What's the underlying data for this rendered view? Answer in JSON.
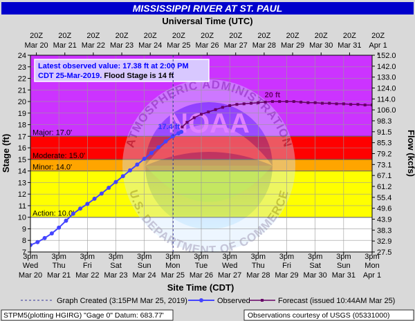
{
  "chart_data": {
    "type": "line",
    "title": "MISSISSIPPI RIVER AT ST. PAUL",
    "top_axis_title": "Universal Time (UTC)",
    "bottom_axis_title": "Site Time (CDT)",
    "ylabel": "Stage (ft)",
    "y2label": "Flow (kcfs)",
    "ylim": [
      7,
      24
    ],
    "xlim": [
      "Mar 20 3pm CDT",
      "Apr 1 3pm CDT"
    ],
    "y_ticks": [
      "7",
      "8",
      "9",
      "10",
      "11",
      "12",
      "13",
      "14",
      "15",
      "16",
      "17",
      "18",
      "19",
      "20",
      "21",
      "22",
      "23",
      "24"
    ],
    "y2_ticks": [
      "27.5",
      "32.9",
      "38.3",
      "43.9",
      "49.6",
      "55.4",
      "61.2",
      "67.1",
      "73.1",
      "79.2",
      "85.3",
      "91.5",
      "98.3",
      "106.0",
      "114.0",
      "124.0",
      "133.0",
      "142.0",
      "152.0"
    ],
    "top_ticks": [
      {
        "l1": "20Z",
        "l2": "Mar 20"
      },
      {
        "l1": "20Z",
        "l2": "Mar 21"
      },
      {
        "l1": "20Z",
        "l2": "Mar 22"
      },
      {
        "l1": "20Z",
        "l2": "Mar 23"
      },
      {
        "l1": "20Z",
        "l2": "Mar 24"
      },
      {
        "l1": "20Z",
        "l2": "Mar 25"
      },
      {
        "l1": "20Z",
        "l2": "Mar 26"
      },
      {
        "l1": "20Z",
        "l2": "Mar 27"
      },
      {
        "l1": "20Z",
        "l2": "Mar 28"
      },
      {
        "l1": "20Z",
        "l2": "Mar 29"
      },
      {
        "l1": "20Z",
        "l2": "Mar 30"
      },
      {
        "l1": "20Z",
        "l2": "Mar 31"
      },
      {
        "l1": "20Z",
        "l2": "Apr 1"
      }
    ],
    "bottom_ticks": [
      {
        "l1": "3pm",
        "l2": "Wed",
        "l3": "Mar 20"
      },
      {
        "l1": "3pm",
        "l2": "Thu",
        "l3": "Mar 21"
      },
      {
        "l1": "3pm",
        "l2": "Fri",
        "l3": "Mar 22"
      },
      {
        "l1": "3pm",
        "l2": "Sat",
        "l3": "Mar 23"
      },
      {
        "l1": "3pm",
        "l2": "Sun",
        "l3": "Mar 24"
      },
      {
        "l1": "3pm",
        "l2": "Mon",
        "l3": "Mar 25"
      },
      {
        "l1": "3pm",
        "l2": "Tue",
        "l3": "Mar 26"
      },
      {
        "l1": "3pm",
        "l2": "Wed",
        "l3": "Mar 27"
      },
      {
        "l1": "3pm",
        "l2": "Thu",
        "l3": "Mar 28"
      },
      {
        "l1": "3pm",
        "l2": "Fri",
        "l3": "Mar 29"
      },
      {
        "l1": "3pm",
        "l2": "Sat",
        "l3": "Mar 30"
      },
      {
        "l1": "3pm",
        "l2": "Sun",
        "l3": "Mar 31"
      },
      {
        "l1": "3pm",
        "l2": "Mon",
        "l3": "Apr 1"
      }
    ],
    "flood_categories": [
      {
        "label": "Action: 10.0'",
        "from": 10,
        "to": 14,
        "color": "#ffff00"
      },
      {
        "label": "Minor: 14.0'",
        "from": 14,
        "to": 15,
        "color": "#ffa500"
      },
      {
        "label": "Moderate: 15.0'",
        "from": 15,
        "to": 17,
        "color": "#ff0000"
      },
      {
        "label": "Major: 17.0'",
        "from": 17,
        "to": 24,
        "color": "#cc33ff"
      }
    ],
    "info_box": {
      "line1": "Latest observed value: 17.38 ft at 2:00 PM",
      "line2a": "CDT 25-Mar-2019.",
      "line2b": " Flood Stage is 14 ft"
    },
    "annotations": {
      "observed_peak": "17.4 ft",
      "forecast_peak": "20 ft",
      "watermark_upper": "ATMOSPHERIC ADMINISTRATION",
      "watermark_lower": "U.S. DEPARTMENT OF COMMERCE",
      "watermark_noaa": "NOAA"
    },
    "series": [
      {
        "name": "Observed",
        "color": "#4444ff",
        "points": [
          [
            0,
            7.6
          ],
          [
            0.25,
            7.85
          ],
          [
            0.5,
            8.2
          ],
          [
            0.75,
            8.6
          ],
          [
            1.0,
            9.1
          ],
          [
            1.25,
            9.7
          ],
          [
            1.5,
            10.3
          ],
          [
            1.75,
            10.75
          ],
          [
            2.0,
            11.15
          ],
          [
            2.25,
            11.6
          ],
          [
            2.5,
            12.05
          ],
          [
            2.75,
            12.55
          ],
          [
            3.0,
            13.05
          ],
          [
            3.25,
            13.55
          ],
          [
            3.5,
            14.05
          ],
          [
            3.75,
            14.55
          ],
          [
            4.0,
            15.05
          ],
          [
            4.25,
            15.55
          ],
          [
            4.5,
            16.05
          ],
          [
            4.75,
            16.55
          ],
          [
            5.0,
            17.0
          ],
          [
            5.2,
            17.25
          ],
          [
            5.3,
            17.38
          ]
        ]
      },
      {
        "name": "Forecast (issued 10:44AM Mar 25)",
        "color": "#660066",
        "points": [
          [
            5.33,
            17.8
          ],
          [
            5.5,
            18.2
          ],
          [
            5.75,
            18.6
          ],
          [
            6.0,
            18.9
          ],
          [
            6.25,
            19.1
          ],
          [
            6.5,
            19.3
          ],
          [
            6.75,
            19.5
          ],
          [
            7.0,
            19.65
          ],
          [
            7.25,
            19.75
          ],
          [
            7.5,
            19.8
          ],
          [
            7.75,
            19.85
          ],
          [
            8.0,
            19.9
          ],
          [
            8.25,
            19.95
          ],
          [
            8.5,
            20.0
          ],
          [
            8.75,
            20.0
          ],
          [
            9.0,
            20.0
          ],
          [
            9.25,
            20.0
          ],
          [
            9.5,
            19.95
          ],
          [
            9.75,
            19.9
          ],
          [
            10.0,
            19.9
          ],
          [
            10.25,
            19.85
          ],
          [
            10.5,
            19.85
          ],
          [
            10.75,
            19.8
          ],
          [
            11.0,
            19.8
          ],
          [
            11.25,
            19.75
          ],
          [
            11.5,
            19.75
          ],
          [
            11.75,
            19.7
          ],
          [
            12.0,
            19.7
          ]
        ]
      }
    ],
    "legend": {
      "graph_created": "Graph Created (3:15PM Mar 25, 2019)",
      "observed": "Observed",
      "forecast": "Forecast (issued 10:44AM Mar 25)"
    },
    "footer": {
      "left": "STPM5(plotting HGIRG) \"Gage 0\" Datum: 683.77'",
      "right": "Observations courtesy of USGS (05331000)"
    }
  }
}
